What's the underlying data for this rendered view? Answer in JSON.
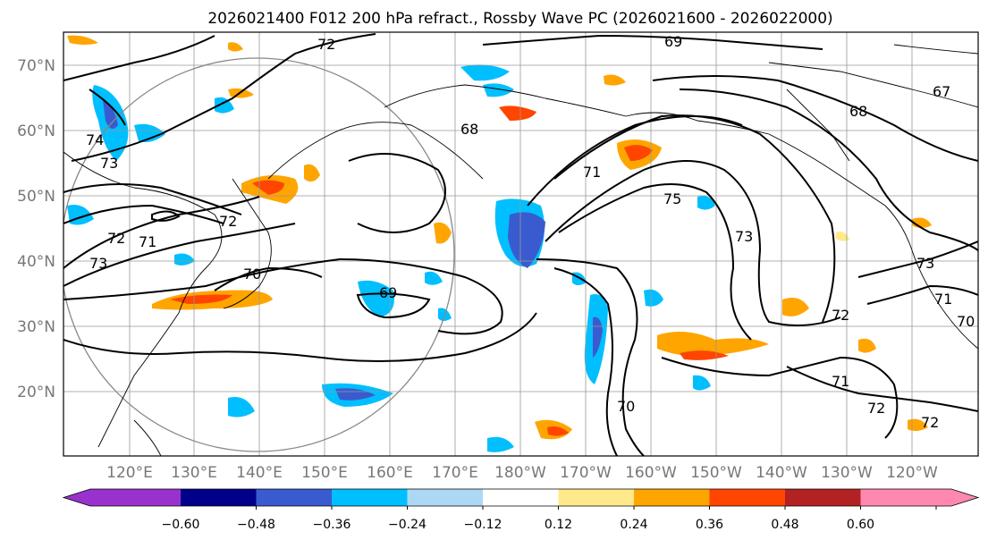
{
  "title": "2026021400 F012 200 hPa refract., Rossby Wave PC (2026021600 - 2026022000)",
  "lat_labels": [
    "70°N",
    "60°N",
    "50°N",
    "40°N",
    "30°N",
    "20°N"
  ],
  "lon_labels": [
    "120°E",
    "130°E",
    "140°E",
    "150°E",
    "160°E",
    "170°E",
    "180°W",
    "170°W",
    "160°W",
    "150°W",
    "140°W",
    "130°W",
    "120°W"
  ],
  "colorbar": {
    "ticks": [
      "−0.60",
      "−0.48",
      "−0.36",
      "−0.24",
      "−0.12",
      "0.12",
      "0.24",
      "0.36",
      "0.48",
      "0.60"
    ],
    "colors": [
      "#9932cc",
      "#00008b",
      "#3a5bcf",
      "#00bfff",
      "#add8f5",
      "#ffffff",
      "#ffe98a",
      "#ffa500",
      "#ff4500",
      "#b22222",
      "#ff88b0"
    ]
  },
  "contour_labels": [
    "72",
    "69",
    "67",
    "68",
    "68",
    "74",
    "73",
    "72",
    "71",
    "73",
    "72",
    "70",
    "69",
    "71",
    "75",
    "73",
    "72",
    "71",
    "70",
    "73",
    "71",
    "70",
    "72",
    "72"
  ],
  "legend_colors": {
    "negative_strong": "#3a5bcf",
    "negative": "#00bfff",
    "negative_weak": "#add8f5",
    "positive_weak": "#ffe98a",
    "positive": "#ffa500",
    "positive_strong": "#ff4500"
  }
}
